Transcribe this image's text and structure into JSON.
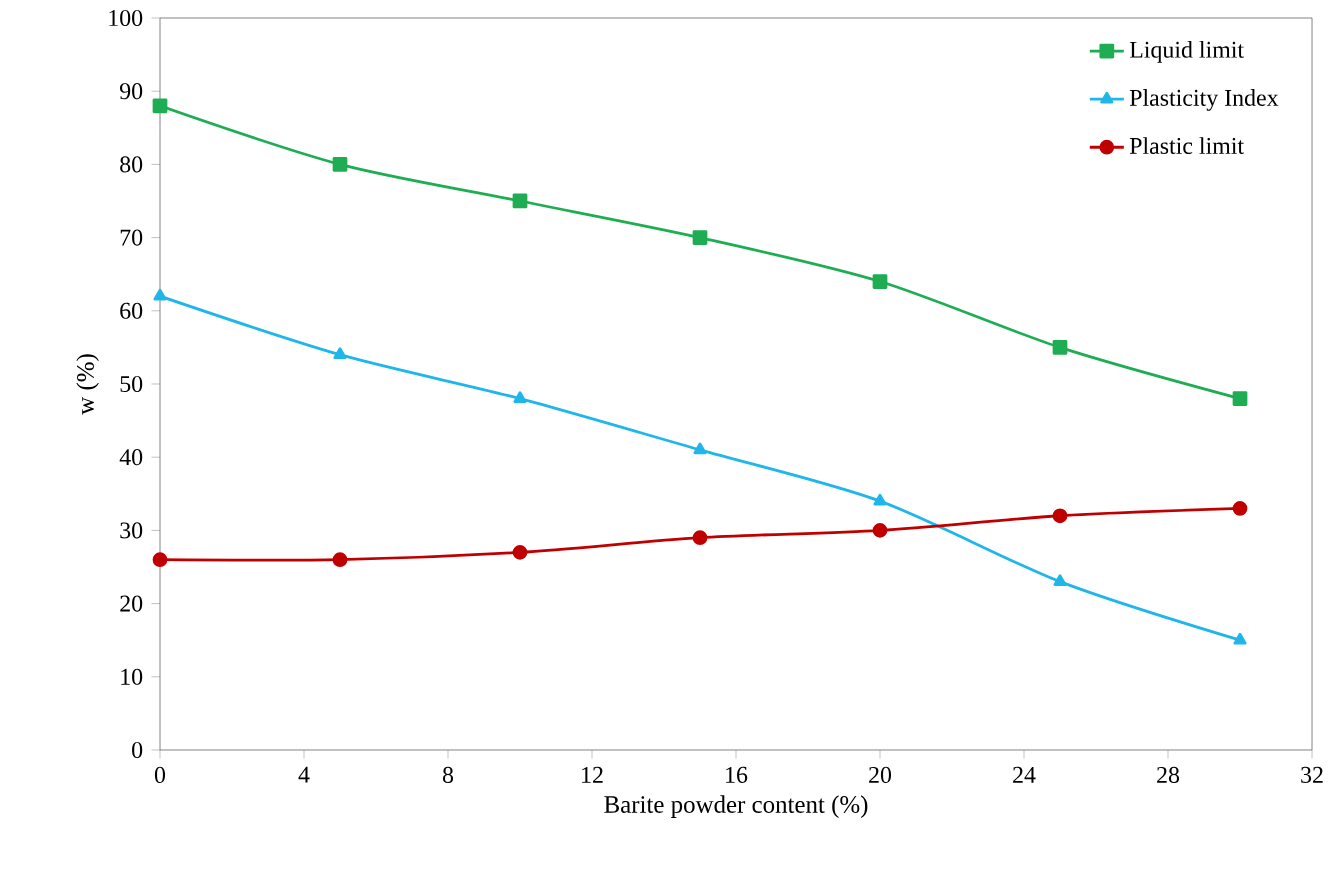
{
  "chart_data": {
    "type": "line",
    "xlabel": "Barite powder content (%)",
    "ylabel": "w (%)",
    "x": [
      0,
      5,
      10,
      15,
      20,
      25,
      30
    ],
    "series": [
      {
        "name": "Liquid limit",
        "color": "#1fad54",
        "marker": "square",
        "values": [
          88,
          80,
          75,
          70,
          64,
          55,
          48
        ]
      },
      {
        "name": "Plasticity Index",
        "color": "#1fb6ea",
        "marker": "triangle",
        "values": [
          62,
          54,
          48,
          41,
          34,
          23,
          15
        ]
      },
      {
        "name": "Plastic limit",
        "color": "#c00000",
        "marker": "circle",
        "values": [
          26,
          26,
          27,
          29,
          30,
          32,
          33
        ]
      }
    ],
    "xlim": [
      0,
      32
    ],
    "xticks": [
      0,
      4,
      8,
      12,
      16,
      20,
      24,
      28,
      32
    ],
    "ylim": [
      0,
      100
    ],
    "yticks": [
      0,
      10,
      20,
      30,
      40,
      50,
      60,
      70,
      80,
      90,
      100
    ],
    "grid": false,
    "legend": "top right",
    "line_style": "solid"
  }
}
